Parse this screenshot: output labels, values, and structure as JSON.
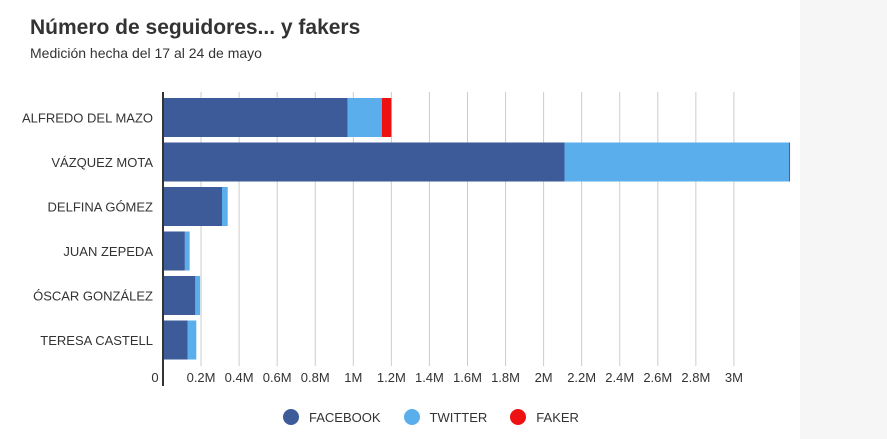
{
  "chart_data": {
    "type": "bar",
    "orientation": "horizontal",
    "stacked": true,
    "title": "Número de seguidores... y fakers",
    "subtitle": "Medición hecha del 17 al 24 de mayo",
    "categories": [
      "ALFREDO DEL MAZO",
      "VÁZQUEZ MOTA",
      "DELFINA GÓMEZ",
      "JUAN ZEPEDA",
      "ÓSCAR GONZÁLEZ",
      "TERESA CASTELL"
    ],
    "series": [
      {
        "name": "FACEBOOK",
        "color": "#3d5a99",
        "values": [
          970000,
          2110000,
          310000,
          115000,
          170000,
          130000
        ]
      },
      {
        "name": "TWITTER",
        "color": "#5aaeeb",
        "values": [
          180000,
          1180000,
          30000,
          25000,
          25000,
          45000
        ]
      },
      {
        "name": "FAKER",
        "color": "#ee1111",
        "values": [
          50000,
          5000,
          0,
          0,
          0,
          0
        ]
      }
    ],
    "xlim": [
      0,
      3300000
    ],
    "xticks": [
      {
        "value": 0,
        "label": "0"
      },
      {
        "value": 200000,
        "label": "0.2M"
      },
      {
        "value": 400000,
        "label": "0.4M"
      },
      {
        "value": 600000,
        "label": "0.6M"
      },
      {
        "value": 800000,
        "label": "0.8M"
      },
      {
        "value": 1000000,
        "label": "1M"
      },
      {
        "value": 1200000,
        "label": "1.2M"
      },
      {
        "value": 1400000,
        "label": "1.4M"
      },
      {
        "value": 1600000,
        "label": "1.6M"
      },
      {
        "value": 1800000,
        "label": "1.8M"
      },
      {
        "value": 2000000,
        "label": "2M"
      },
      {
        "value": 2200000,
        "label": "2.2M"
      },
      {
        "value": 2400000,
        "label": "2.4M"
      },
      {
        "value": 2600000,
        "label": "2.6M"
      },
      {
        "value": 2800000,
        "label": "2.8M"
      },
      {
        "value": 3000000,
        "label": "3M"
      }
    ],
    "grid": true,
    "legend_position": "bottom"
  }
}
